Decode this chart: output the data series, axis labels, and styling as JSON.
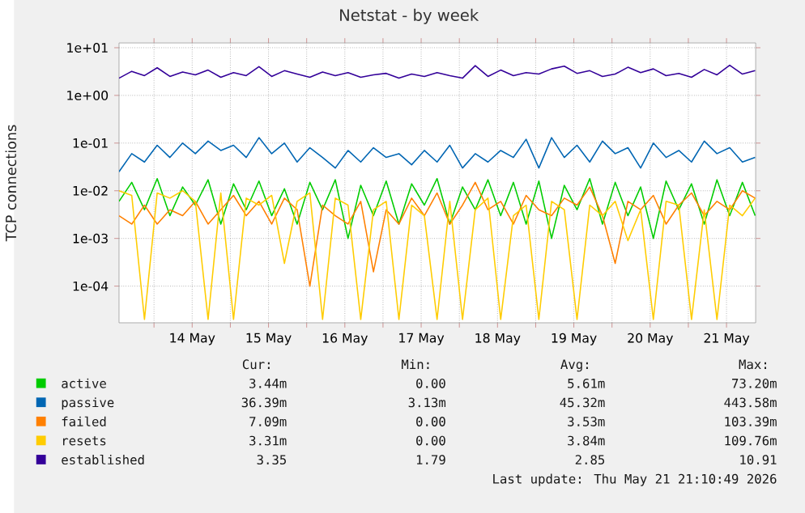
{
  "chart_data": {
    "type": "line",
    "title": "Netstat - by week",
    "ylabel": "TCP connections",
    "log": "y",
    "xlim": [
      "2026-05-13T13:00",
      "2026-05-21T21:10"
    ],
    "ylim": [
      1.7e-05,
      12.6
    ],
    "xticks": [
      {
        "value": "2026-05-14T00:00",
        "label": null
      },
      {
        "value": "2026-05-14T12:00",
        "label": "14 May"
      },
      {
        "value": "2026-05-15T00:00",
        "label": null
      },
      {
        "value": "2026-05-15T12:00",
        "label": "15 May"
      },
      {
        "value": "2026-05-16T00:00",
        "label": null
      },
      {
        "value": "2026-05-16T12:00",
        "label": "16 May"
      },
      {
        "value": "2026-05-17T00:00",
        "label": null
      },
      {
        "value": "2026-05-17T12:00",
        "label": "17 May"
      },
      {
        "value": "2026-05-18T00:00",
        "label": null
      },
      {
        "value": "2026-05-18T12:00",
        "label": "18 May"
      },
      {
        "value": "2026-05-19T00:00",
        "label": null
      },
      {
        "value": "2026-05-19T12:00",
        "label": "19 May"
      },
      {
        "value": "2026-05-20T00:00",
        "label": null
      },
      {
        "value": "2026-05-20T12:00",
        "label": "20 May"
      },
      {
        "value": "2026-05-21T00:00",
        "label": null
      },
      {
        "value": "2026-05-21T12:00",
        "label": "21 May"
      }
    ],
    "yticks": [
      {
        "value": 0.0001,
        "label": "1e-04"
      },
      {
        "value": 0.001,
        "label": "1e-03"
      },
      {
        "value": 0.01,
        "label": "1e-02"
      },
      {
        "value": 0.1,
        "label": "1e-01"
      },
      {
        "value": 1,
        "label": "1e+00"
      },
      {
        "value": 10,
        "label": "1e+01"
      }
    ],
    "grid": true,
    "legend": "bottom",
    "marker": "none",
    "line_style": "solid",
    "x": [
      "2026-05-13T13:00",
      "2026-05-13T17:00",
      "2026-05-13T21:00",
      "2026-05-14T01:00",
      "2026-05-14T05:00",
      "2026-05-14T09:00",
      "2026-05-14T13:00",
      "2026-05-14T17:00",
      "2026-05-14T21:00",
      "2026-05-15T01:00",
      "2026-05-15T05:00",
      "2026-05-15T09:00",
      "2026-05-15T13:00",
      "2026-05-15T17:00",
      "2026-05-15T21:00",
      "2026-05-16T01:00",
      "2026-05-16T05:00",
      "2026-05-16T09:00",
      "2026-05-16T13:00",
      "2026-05-16T17:00",
      "2026-05-16T21:00",
      "2026-05-17T01:00",
      "2026-05-17T05:00",
      "2026-05-17T09:00",
      "2026-05-17T13:00",
      "2026-05-17T17:00",
      "2026-05-17T21:00",
      "2026-05-18T01:00",
      "2026-05-18T05:00",
      "2026-05-18T09:00",
      "2026-05-18T13:00",
      "2026-05-18T17:00",
      "2026-05-18T21:00",
      "2026-05-19T01:00",
      "2026-05-19T05:00",
      "2026-05-19T09:00",
      "2026-05-19T13:00",
      "2026-05-19T17:00",
      "2026-05-19T21:00",
      "2026-05-20T01:00",
      "2026-05-20T05:00",
      "2026-05-20T09:00",
      "2026-05-20T13:00",
      "2026-05-20T17:00",
      "2026-05-20T21:00",
      "2026-05-21T01:00",
      "2026-05-21T05:00",
      "2026-05-21T09:00",
      "2026-05-21T13:00",
      "2026-05-21T17:00",
      "2026-05-21T21:00"
    ],
    "series": [
      {
        "name": "active",
        "color": "#00cc00",
        "values": [
          0.006,
          0.015,
          0.004,
          0.018,
          0.003,
          0.012,
          0.005,
          0.017,
          0.002,
          0.014,
          0.004,
          0.016,
          0.003,
          0.011,
          0.002,
          0.015,
          0.004,
          0.017,
          0.001,
          0.013,
          0.003,
          0.016,
          0.002,
          0.014,
          0.005,
          0.018,
          0.002,
          0.012,
          0.004,
          0.017,
          0.003,
          0.015,
          0.002,
          0.016,
          0.001,
          0.013,
          0.004,
          0.018,
          0.002,
          0.015,
          0.003,
          0.012,
          0.001,
          0.016,
          0.004,
          0.014,
          0.002,
          0.017,
          0.003,
          0.015,
          0.003
        ]
      },
      {
        "name": "passive",
        "color": "#0066b3",
        "values": [
          0.025,
          0.06,
          0.04,
          0.09,
          0.05,
          0.1,
          0.06,
          0.11,
          0.07,
          0.09,
          0.05,
          0.13,
          0.06,
          0.1,
          0.04,
          0.08,
          0.05,
          0.03,
          0.07,
          0.04,
          0.08,
          0.05,
          0.06,
          0.035,
          0.07,
          0.04,
          0.09,
          0.03,
          0.06,
          0.04,
          0.07,
          0.05,
          0.12,
          0.03,
          0.13,
          0.05,
          0.09,
          0.04,
          0.11,
          0.06,
          0.08,
          0.03,
          0.1,
          0.05,
          0.07,
          0.04,
          0.11,
          0.06,
          0.08,
          0.04,
          0.05
        ]
      },
      {
        "name": "failed",
        "color": "#ff8000",
        "values": [
          0.003,
          0.002,
          0.005,
          0.002,
          0.004,
          0.003,
          0.006,
          0.002,
          0.004,
          0.008,
          0.003,
          0.006,
          0.002,
          0.007,
          0.004,
          0.0001,
          0.005,
          0.003,
          0.002,
          0.006,
          0.0002,
          0.004,
          0.002,
          0.007,
          0.003,
          0.009,
          0.002,
          0.005,
          0.015,
          0.004,
          0.006,
          0.002,
          0.008,
          0.004,
          0.003,
          0.007,
          0.005,
          0.012,
          0.003,
          0.0003,
          0.006,
          0.004,
          0.008,
          0.002,
          0.005,
          0.009,
          0.003,
          0.006,
          0.004,
          0.01,
          0.007
        ]
      },
      {
        "name": "resets",
        "color": "#ffcc00",
        "values": [
          0.01,
          0.008,
          2e-05,
          0.009,
          0.007,
          0.01,
          0.006,
          2e-05,
          0.009,
          2e-05,
          0.007,
          0.005,
          0.008,
          0.0003,
          0.006,
          0.009,
          2e-05,
          0.007,
          0.005,
          2e-05,
          0.004,
          0.006,
          2e-05,
          0.005,
          0.003,
          2e-05,
          0.006,
          2e-05,
          0.004,
          0.007,
          2e-05,
          0.003,
          0.005,
          2e-05,
          0.006,
          0.004,
          2e-05,
          0.005,
          0.003,
          0.006,
          0.0009,
          0.004,
          2e-05,
          0.006,
          0.005,
          2e-05,
          0.004,
          2e-05,
          0.005,
          0.003,
          0.007
        ]
      },
      {
        "name": "established",
        "color": "#330099",
        "values": [
          2.3,
          3.2,
          2.6,
          3.8,
          2.5,
          3.1,
          2.7,
          3.4,
          2.4,
          3.0,
          2.6,
          4.0,
          2.5,
          3.3,
          2.8,
          2.4,
          3.1,
          2.6,
          3.0,
          2.4,
          2.7,
          2.9,
          2.3,
          2.8,
          2.5,
          3.0,
          2.6,
          2.3,
          4.2,
          2.5,
          3.4,
          2.6,
          3.0,
          2.8,
          3.6,
          4.1,
          2.9,
          3.3,
          2.5,
          2.8,
          3.9,
          3.0,
          3.6,
          2.6,
          2.9,
          2.4,
          3.5,
          2.7,
          4.3,
          2.8,
          3.3
        ]
      }
    ],
    "annotations": [
      "Cur:",
      "Min:",
      "Avg:",
      "Max:",
      "3.44m",
      "0.00",
      "5.61m",
      "73.20m",
      "36.39m",
      "3.13m",
      "45.32m",
      "443.58m",
      "7.09m",
      "0.00",
      "3.53m",
      "103.39m",
      "3.31m",
      "0.00",
      "3.84m",
      "109.76m",
      "3.35",
      "1.79",
      "2.85",
      "10.91",
      "Last update: Thu May 21 21:10:49 2026"
    ]
  }
}
